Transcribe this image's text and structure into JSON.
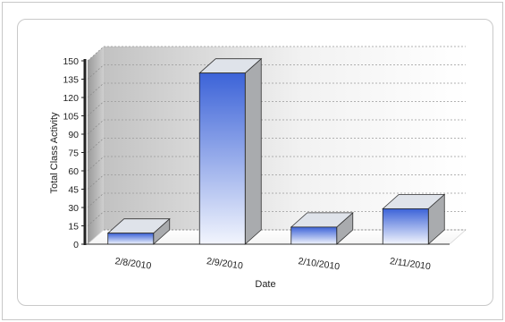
{
  "chart_data": {
    "type": "bar",
    "title": "",
    "xlabel": "Date",
    "ylabel": "Total Class Activity",
    "categories": [
      "2/8/2010",
      "2/9/2010",
      "2/10/2010",
      "2/11/2010"
    ],
    "values": [
      9,
      140,
      14,
      29
    ],
    "ylim": [
      0,
      150
    ],
    "yticks": [
      "0",
      "15",
      "30",
      "45",
      "60",
      "75",
      "90",
      "105",
      "120",
      "135",
      "150"
    ],
    "grid": true,
    "legend": "none",
    "style": "3d",
    "colors": {
      "bar_top": "#3c63d8",
      "bar_bottom": "#f2f5fd",
      "bar_side": "#a9abae",
      "bar_cap": "#dfe3ea",
      "wall_light": "#ffffff",
      "wall_dark": "#c2c2c2"
    }
  }
}
